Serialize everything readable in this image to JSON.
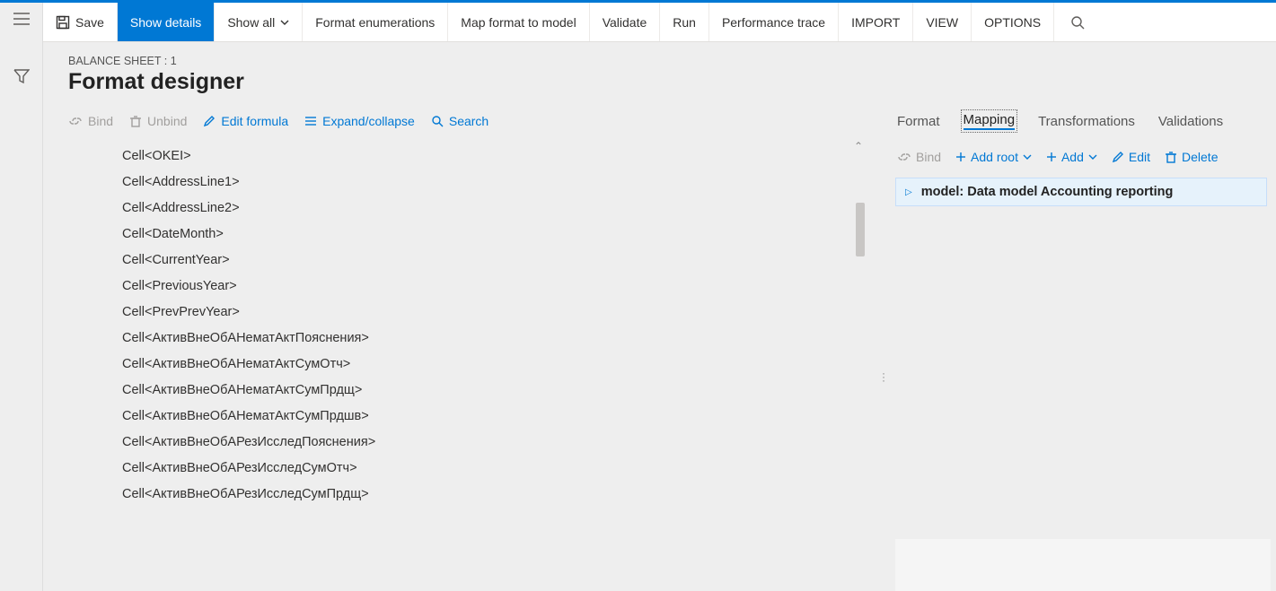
{
  "colors": {
    "accent": "#0078d4",
    "toolbar_bg": "#ffffff",
    "page_bg": "#eeeeee",
    "active_tab_bg": "#0078d4",
    "disabled_text": "#a19f9d",
    "link_text": "#0078d4",
    "selection_bg": "#e6f2fb",
    "selection_border": "#c7defa"
  },
  "top_toolbar": {
    "save": "Save",
    "show_details": "Show details",
    "show_all": "Show all",
    "format_enumerations": "Format enumerations",
    "map_format_to_model": "Map format to model",
    "validate": "Validate",
    "run": "Run",
    "performance_trace": "Performance trace",
    "import": "IMPORT",
    "view": "VIEW",
    "options": "OPTIONS"
  },
  "header": {
    "breadcrumb": "BALANCE SHEET : 1",
    "title": "Format designer"
  },
  "left_toolbar": {
    "bind": "Bind",
    "unbind": "Unbind",
    "edit_formula": "Edit formula",
    "expand_collapse": "Expand/collapse",
    "search": "Search"
  },
  "format_tree": {
    "items": [
      "Cell<OKEI>",
      "Cell<AddressLine1>",
      "Cell<AddressLine2>",
      "Cell<DateMonth>",
      "Cell<CurrentYear>",
      "Cell<PreviousYear>",
      "Cell<PrevPrevYear>",
      "Cell<АктивВнеОбАНематАктПояснения>",
      "Cell<АктивВнеОбАНематАктСумОтч>",
      "Cell<АктивВнеОбАНематАктСумПрдщ>",
      "Cell<АктивВнеОбАНематАктСумПрдшв>",
      "Cell<АктивВнеОбАРезИсследПояснения>",
      "Cell<АктивВнеОбАРезИсследСумОтч>",
      "Cell<АктивВнеОбАРезИсследСумПрдщ>"
    ]
  },
  "right_tabs": {
    "format": "Format",
    "mapping": "Mapping",
    "transformations": "Transformations",
    "validations": "Validations"
  },
  "right_toolbar": {
    "bind": "Bind",
    "add_root": "Add root",
    "add": "Add",
    "edit": "Edit",
    "delete": "Delete"
  },
  "mapping": {
    "root_label": "model: Data model Accounting reporting"
  }
}
